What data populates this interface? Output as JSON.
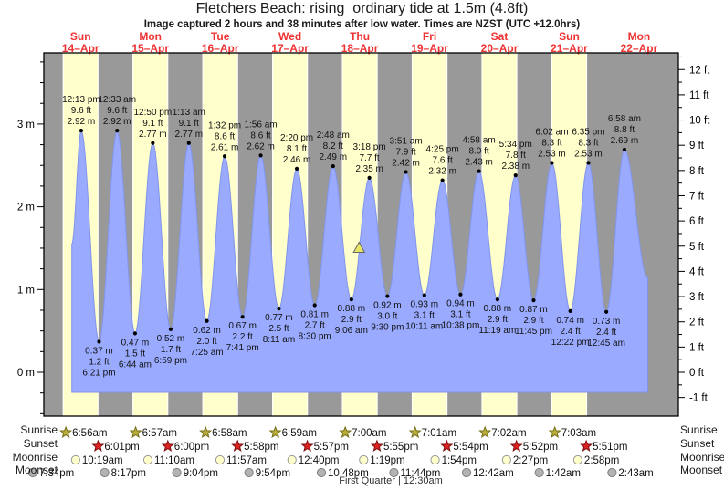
{
  "chart_data": {
    "type": "area",
    "title": "Fletchers Beach: rising  ordinary tide at 1.5m (4.8ft)",
    "subtitle": "Image captured 2 hours and 38 minutes after low water. Times are NZST (UTC +12.0hrs)",
    "days": [
      {
        "dow": "Sun",
        "date": "14–Apr"
      },
      {
        "dow": "Mon",
        "date": "15–Apr"
      },
      {
        "dow": "Tue",
        "date": "16–Apr"
      },
      {
        "dow": "Wed",
        "date": "17–Apr"
      },
      {
        "dow": "Thu",
        "date": "18–Apr"
      },
      {
        "dow": "Fri",
        "date": "19–Apr"
      },
      {
        "dow": "Sat",
        "date": "20–Apr"
      },
      {
        "dow": "Sun",
        "date": "21–Apr"
      },
      {
        "dow": "Mon",
        "date": "22–Apr"
      }
    ],
    "y_left": {
      "unit": "m",
      "labels": [
        "0 m",
        "1 m",
        "2 m",
        "3 m"
      ]
    },
    "y_right": {
      "unit": "ft",
      "labels": [
        "-1 ft",
        "0 ft",
        "1 ft",
        "2 ft",
        "3 ft",
        "4 ft",
        "5 ft",
        "6 ft",
        "7 ft",
        "8 ft",
        "9 ft",
        "10 ft",
        "11 ft",
        "12 ft"
      ]
    },
    "tides": [
      {
        "d": 0,
        "type": "H",
        "time": "12:13 pm",
        "ft": "9.6 ft",
        "m": "2.92 m",
        "h": 2.92
      },
      {
        "d": 0,
        "type": "L",
        "time": "6:21 pm",
        "ft": "1.2 ft",
        "m": "0.37 m",
        "h": 0.37
      },
      {
        "d": 1,
        "type": "H",
        "time": "12:33 am",
        "ft": "9.6 ft",
        "m": "2.92 m",
        "h": 2.92
      },
      {
        "d": 1,
        "type": "L",
        "time": "6:44 am",
        "ft": "1.5 ft",
        "m": "0.47 m",
        "h": 0.47
      },
      {
        "d": 1,
        "type": "H",
        "time": "12:50 pm",
        "ft": "9.1 ft",
        "m": "2.77 m",
        "h": 2.77
      },
      {
        "d": 1,
        "type": "L",
        "time": "6:59 pm",
        "ft": "1.7 ft",
        "m": "0.52 m",
        "h": 0.52
      },
      {
        "d": 2,
        "type": "H",
        "time": "1:13 am",
        "ft": "9.1 ft",
        "m": "2.77 m",
        "h": 2.77
      },
      {
        "d": 2,
        "type": "L",
        "time": "7:25 am",
        "ft": "2.0 ft",
        "m": "0.62 m",
        "h": 0.62
      },
      {
        "d": 2,
        "type": "H",
        "time": "1:32 pm",
        "ft": "8.6 ft",
        "m": "2.61 m",
        "h": 2.61
      },
      {
        "d": 2,
        "type": "L",
        "time": "7:41 pm",
        "ft": "2.2 ft",
        "m": "0.67 m",
        "h": 0.67
      },
      {
        "d": 3,
        "type": "H",
        "time": "1:56 am",
        "ft": "8.6 ft",
        "m": "2.62 m",
        "h": 2.62
      },
      {
        "d": 3,
        "type": "L",
        "time": "8:11 am",
        "ft": "2.5 ft",
        "m": "0.77 m",
        "h": 0.77
      },
      {
        "d": 3,
        "type": "H",
        "time": "2:20 pm",
        "ft": "8.1 ft",
        "m": "2.46 m",
        "h": 2.46
      },
      {
        "d": 3,
        "type": "L",
        "time": "8:30 pm",
        "ft": "2.7 ft",
        "m": "0.81 m",
        "h": 0.81
      },
      {
        "d": 4,
        "type": "H",
        "time": "2:48 am",
        "ft": "8.2 ft",
        "m": "2.49 m",
        "h": 2.49
      },
      {
        "d": 4,
        "type": "L",
        "time": "9:06 am",
        "ft": "2.9 ft",
        "m": "0.88 m",
        "h": 0.88
      },
      {
        "d": 4,
        "type": "H",
        "time": "3:18 pm",
        "ft": "7.7 ft",
        "m": "2.35 m",
        "h": 2.35
      },
      {
        "d": 4,
        "type": "L",
        "time": "9:30 pm",
        "ft": "3.0 ft",
        "m": "0.92 m",
        "h": 0.92
      },
      {
        "d": 5,
        "type": "H",
        "time": "3:51 am",
        "ft": "7.9 ft",
        "m": "2.42 m",
        "h": 2.42
      },
      {
        "d": 5,
        "type": "L",
        "time": "10:11 am",
        "ft": "3.1 ft",
        "m": "0.93 m",
        "h": 0.93
      },
      {
        "d": 5,
        "type": "H",
        "time": "4:25 pm",
        "ft": "7.6 ft",
        "m": "2.32 m",
        "h": 2.32
      },
      {
        "d": 5,
        "type": "L",
        "time": "10:38 pm",
        "ft": "3.1 ft",
        "m": "0.94 m",
        "h": 0.94
      },
      {
        "d": 6,
        "type": "H",
        "time": "4:58 am",
        "ft": "8.0 ft",
        "m": "2.43 m",
        "h": 2.43
      },
      {
        "d": 6,
        "type": "L",
        "time": "11:19 am",
        "ft": "2.9 ft",
        "m": "0.88 m",
        "h": 0.88
      },
      {
        "d": 6,
        "type": "H",
        "time": "5:34 pm",
        "ft": "7.8 ft",
        "m": "2.38 m",
        "h": 2.38
      },
      {
        "d": 6,
        "type": "L",
        "time": "11:45 pm",
        "ft": "2.9 ft",
        "m": "0.87 m",
        "h": 0.87
      },
      {
        "d": 7,
        "type": "H",
        "time": "6:02 am",
        "ft": "8.3 ft",
        "m": "2.53 m",
        "h": 2.53
      },
      {
        "d": 7,
        "type": "L",
        "time": "12:22 pm",
        "ft": "2.4 ft",
        "m": "0.74 m",
        "h": 0.74
      },
      {
        "d": 7,
        "type": "H",
        "time": "6:35 pm",
        "ft": "8.3 ft",
        "m": "2.53 m",
        "h": 2.53
      },
      {
        "d": 8,
        "type": "L",
        "time": "12:45 am",
        "ft": "2.4 ft",
        "m": "0.73 m",
        "h": 0.73
      },
      {
        "d": 8,
        "type": "H",
        "time": "6:58 am",
        "ft": "8.8 ft",
        "m": "2.69 m",
        "h": 2.69
      }
    ],
    "curve_start": {
      "d": 0,
      "time": "9:00 am",
      "h": 1.55
    },
    "curve_end": {
      "d": 8,
      "time": "3:00 pm",
      "h": 1.14
    },
    "baseline_m": -0.2425,
    "marker": {
      "d": 4,
      "time": "11:44 am",
      "h": 1.5
    },
    "sun_moon": {
      "sunrise": {
        "label": "Sunrise",
        "events": [
          {
            "d": 0,
            "t": "6:56am"
          },
          {
            "d": 1,
            "t": "6:57am"
          },
          {
            "d": 2,
            "t": "6:58am"
          },
          {
            "d": 3,
            "t": "6:59am"
          },
          {
            "d": 4,
            "t": "7:00am"
          },
          {
            "d": 5,
            "t": "7:01am"
          },
          {
            "d": 6,
            "t": "7:02am"
          },
          {
            "d": 7,
            "t": "7:03am"
          }
        ]
      },
      "sunset": {
        "label": "Sunset",
        "events": [
          {
            "d": 0,
            "t": "6:01pm"
          },
          {
            "d": 1,
            "t": "6:00pm"
          },
          {
            "d": 2,
            "t": "5:58pm"
          },
          {
            "d": 3,
            "t": "5:57pm"
          },
          {
            "d": 4,
            "t": "5:55pm"
          },
          {
            "d": 5,
            "t": "5:54pm"
          },
          {
            "d": 6,
            "t": "5:52pm"
          },
          {
            "d": 7,
            "t": "5:51pm"
          }
        ]
      },
      "moonrise": {
        "label": "Moonrise",
        "events": [
          {
            "d": 0,
            "t": "10:19am"
          },
          {
            "d": 1,
            "t": "11:10am"
          },
          {
            "d": 2,
            "t": "11:57am"
          },
          {
            "d": 3,
            "t": "12:40pm"
          },
          {
            "d": 4,
            "t": "1:19pm"
          },
          {
            "d": 5,
            "t": "1:54pm"
          },
          {
            "d": 6,
            "t": "2:27pm"
          },
          {
            "d": 7,
            "t": "2:58pm"
          }
        ]
      },
      "moonset": {
        "label": "Moonset",
        "events": [
          {
            "d": -1,
            "t": "7:34pm"
          },
          {
            "d": 0,
            "t": "8:17pm"
          },
          {
            "d": 1,
            "t": "9:04pm"
          },
          {
            "d": 2,
            "t": "9:54pm"
          },
          {
            "d": 3,
            "t": "10:48pm"
          },
          {
            "d": 4,
            "t": "11:44pm"
          },
          {
            "d": 6,
            "t": "12:42am"
          },
          {
            "d": 7,
            "t": "1:42am"
          },
          {
            "d": 8,
            "t": "2:43am"
          }
        ]
      }
    },
    "moon_phase": "First Quarter | 12:30am",
    "colors": {
      "night_band": "#999999",
      "day_band": "#ffffcc",
      "tide_fill": "#99aaff",
      "tide_edge": "#8295ea",
      "day_label_red": "#ee3333",
      "sunrise_star": "#b9ae3c",
      "sunrise_star_edge": "#756d18",
      "sunset_star": "#dd2222",
      "sunset_star_edge": "#7a1010",
      "moonrise_fill": "#ffffcc",
      "moonrise_edge": "#999999",
      "moonset_fill": "#b3b3b3",
      "moonset_edge": "#808080",
      "marker_fill": "#e6e664",
      "marker_edge": "#666666",
      "axis": "#000000",
      "text": "#111111"
    }
  }
}
